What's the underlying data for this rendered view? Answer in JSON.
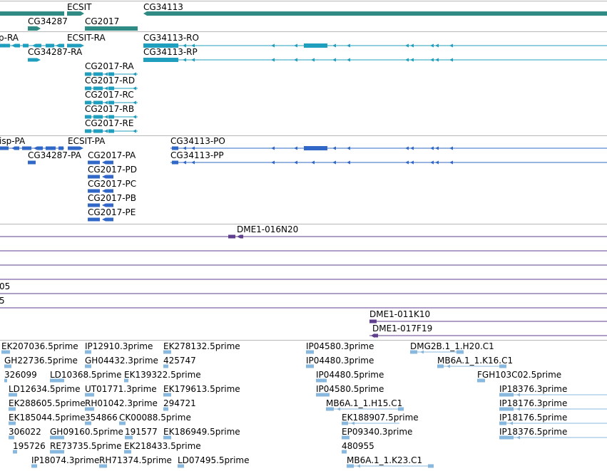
{
  "colors": {
    "gene": "#2f8b84",
    "mrna": "#1f9fbd",
    "cds": "#3168c7",
    "clone": "#5f3f8e",
    "est": "#88b8dd",
    "separator": "#b8b8b8"
  },
  "tracks": {
    "genes": {
      "labels": [
        "ECSIT",
        "CG34113",
        "CG34287",
        "CG2017"
      ]
    },
    "transcripts": {
      "labels": [
        "p-RA",
        "ECSIT-RA",
        "CG34113-RO",
        "CG34287-RA",
        "CG34113-RP",
        "CG2017-RA",
        "CG2017-RD",
        "CG2017-RC",
        "CG2017-RB",
        "CG2017-RE"
      ]
    },
    "proteins": {
      "labels": [
        "isp-PA",
        "ECSIT-PA",
        "CG34113-PO",
        "CG34287-PA",
        "CG2017-PA",
        "CG34113-PP",
        "CG2017-PD",
        "CG2017-PC",
        "CG2017-PB",
        "CG2017-PE"
      ]
    },
    "clones": {
      "labels": [
        "DME1-016N20",
        "05",
        "5",
        "DME1-011K10",
        "DME1-017F19"
      ]
    },
    "ests": {
      "labels": [
        "EK207036.5prime",
        "IP12910.3prime",
        "EK278132.5prime",
        "IP04580.3prime",
        "DMG2B.1_1.H20.C1",
        "GH22736.5prime",
        "GH04432.3prime",
        "425747",
        "IP04480.3prime",
        "MB6A.1_1.K16.C1",
        "326099",
        "LD10368.5prime",
        "EK139322.5prime",
        "IP04480.5prime",
        "FGH103C02.5prime",
        "LD12634.5prime",
        "UT01771.3prime",
        "EK179613.5prime",
        "IP04580.5prime",
        "IP18376.3prime",
        "EK288605.5prime",
        "RH01042.3prime",
        "294721",
        "MB6A.1_1.H15.C1",
        "IP18176.3prime",
        "EK185044.5prime",
        "354866",
        "CK00088.5prime",
        "EK188907.5prime",
        "IP18176.5prime",
        "306022",
        "GH09160.5prime",
        "191577",
        "EK186949.5prime",
        "EP09340.3prime",
        "IP18376.5prime",
        "195726",
        "RE73735.5prime",
        "EK218433.5prime",
        "480955",
        "IP18074.3prime",
        "RH71374.5prime",
        "LD07495.5prime",
        "MB6A.1_1.K23.C1"
      ]
    }
  }
}
